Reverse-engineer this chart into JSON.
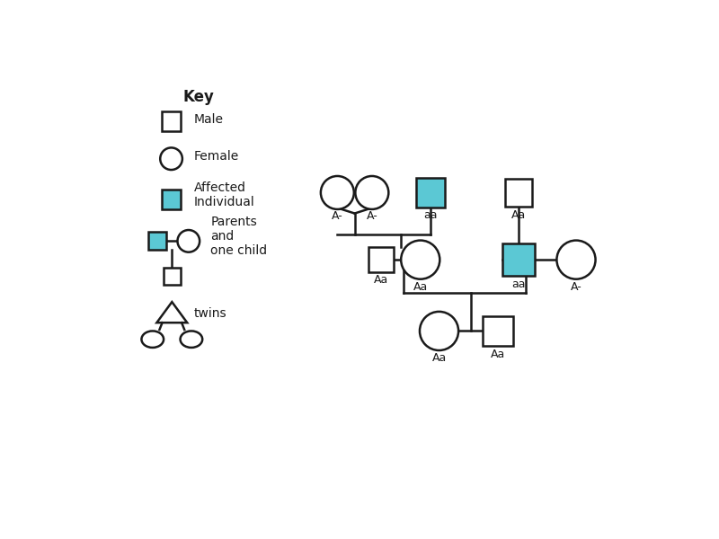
{
  "bg_color": "#ffffff",
  "affected_color": "#5bc8d4",
  "unaffected_color": "#ffffff",
  "line_color": "#1a1a1a",
  "text_color": "#1a1a1a",
  "key_title": "Key",
  "key_male_label": "Male",
  "key_female_label": "Female",
  "key_affected_label": "Affected\nIndividual",
  "key_parents_label": "Parents\nand\none child",
  "key_twins_label": "twins",
  "gen1_female_label": "Aa",
  "gen1_male_label": "Aa",
  "gen2l_male_label": "Aa",
  "gen2l_female_label": "Aa",
  "gen2r_male_label": "aa",
  "gen2r_female_label": "A-",
  "gen3_twin1_label": "A-",
  "gen3_twin2_label": "A-",
  "gen3_child_label": "aa",
  "gen3r_child_label": "Aa"
}
